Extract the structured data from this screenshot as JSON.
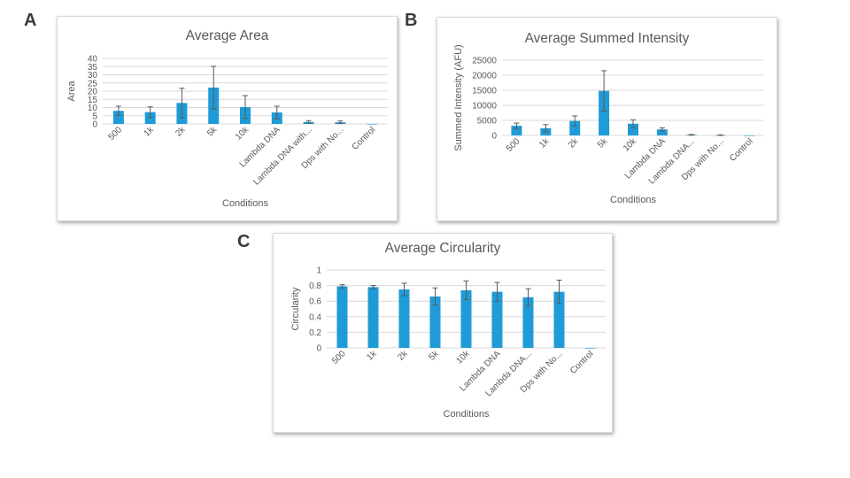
{
  "panels": [
    {
      "label": "A"
    },
    {
      "label": "B"
    },
    {
      "label": "C"
    }
  ],
  "colors": {
    "bar": "#1f9bd7",
    "error_bar": "#5a5a5a",
    "grid": "#d9d9d9",
    "text": "#595959"
  },
  "chart_data": [
    {
      "type": "bar",
      "panel": "A",
      "title": "Average Area",
      "xlabel": "Conditions",
      "ylabel": "Area",
      "ylim": [
        0,
        40
      ],
      "yticks": [
        0,
        5,
        10,
        15,
        20,
        25,
        30,
        35,
        40
      ],
      "ytick_labels": [
        "0",
        "5",
        "10",
        "15",
        "20",
        "25",
        "30",
        "35",
        "40"
      ],
      "grid": true,
      "categories": [
        "500",
        "1k",
        "2k",
        "5k",
        "10k",
        "Lambda DNA",
        "Lambda DNA with...",
        "Dps with No...",
        "Control"
      ],
      "values": [
        8,
        7.2,
        12.8,
        22.2,
        10.3,
        7,
        1.2,
        1,
        0
      ],
      "errors": [
        2.8,
        3.2,
        9,
        13,
        7,
        3.8,
        0.8,
        0.8,
        0
      ]
    },
    {
      "type": "bar",
      "panel": "B",
      "title": "Average Summed Intensity",
      "xlabel": "Conditions",
      "ylabel": "Summed Intensity (AFU)",
      "ylim": [
        0,
        25000
      ],
      "yticks": [
        0,
        5000,
        10000,
        15000,
        20000,
        25000
      ],
      "ytick_labels": [
        "0",
        "5000",
        "10000",
        "15000",
        "20000",
        "25000"
      ],
      "grid": true,
      "categories": [
        "500",
        "1k",
        "2k",
        "5k",
        "10k",
        "Lambda DNA",
        "Lambda DNA...",
        "Dps with No...",
        "Control"
      ],
      "values": [
        3200,
        2400,
        4800,
        14800,
        3900,
        2000,
        200,
        100,
        0
      ],
      "errors": [
        900,
        1200,
        1700,
        6700,
        1300,
        500,
        100,
        80,
        0
      ]
    },
    {
      "type": "bar",
      "panel": "C",
      "title": "Average Circularity",
      "xlabel": "Conditions",
      "ylabel": "Circularity",
      "ylim": [
        0,
        1
      ],
      "yticks": [
        0,
        0.2,
        0.4,
        0.6,
        0.8,
        1
      ],
      "ytick_labels": [
        "0",
        "0.2",
        "0.4",
        "0.6",
        "0.8",
        "1"
      ],
      "grid": true,
      "categories": [
        "500",
        "1k",
        "2k",
        "5k",
        "10k",
        "Lambda DNA",
        "Lambda DNA...",
        "Dps with No...",
        "Control"
      ],
      "values": [
        0.79,
        0.78,
        0.75,
        0.66,
        0.74,
        0.72,
        0.65,
        0.72,
        0
      ],
      "errors": [
        0.02,
        0.02,
        0.08,
        0.11,
        0.12,
        0.12,
        0.11,
        0.15,
        0
      ]
    }
  ]
}
